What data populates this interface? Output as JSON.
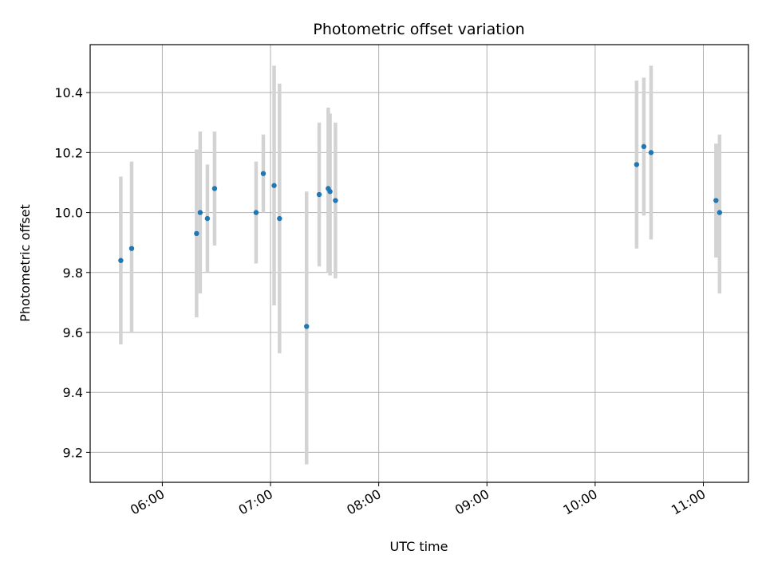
{
  "chart_data": {
    "type": "scatter",
    "title": "Photometric offset variation",
    "xlabel": "UTC time",
    "ylabel": "Photometric offset",
    "x_tick_labels": [
      "06:00",
      "07:00",
      "08:00",
      "09:00",
      "10:00",
      "11:00"
    ],
    "y_tick_labels": [
      "9.2",
      "9.4",
      "9.6",
      "9.8",
      "10.0",
      "10.2",
      "10.4"
    ],
    "xlim": [
      "05:20",
      "11:25"
    ],
    "ylim": [
      9.1,
      10.56
    ],
    "grid": true,
    "colors": {
      "point": "#1f77b4",
      "errorbar": "#d3d3d3"
    },
    "points": [
      {
        "x": "05:37",
        "y": 9.84,
        "y_low": 9.56,
        "y_high": 10.12
      },
      {
        "x": "05:43",
        "y": 9.88,
        "y_low": 9.6,
        "y_high": 10.17
      },
      {
        "x": "06:19",
        "y": 9.93,
        "y_low": 9.65,
        "y_high": 10.21
      },
      {
        "x": "06:21",
        "y": 10.0,
        "y_low": 9.73,
        "y_high": 10.27
      },
      {
        "x": "06:25",
        "y": 9.98,
        "y_low": 9.8,
        "y_high": 10.16
      },
      {
        "x": "06:29",
        "y": 10.08,
        "y_low": 9.89,
        "y_high": 10.27
      },
      {
        "x": "06:52",
        "y": 10.0,
        "y_low": 9.83,
        "y_high": 10.17
      },
      {
        "x": "06:56",
        "y": 10.13,
        "y_low": 10.0,
        "y_high": 10.26
      },
      {
        "x": "07:02",
        "y": 10.09,
        "y_low": 9.69,
        "y_high": 10.49
      },
      {
        "x": "07:05",
        "y": 9.98,
        "y_low": 9.53,
        "y_high": 10.43
      },
      {
        "x": "07:20",
        "y": 9.62,
        "y_low": 9.16,
        "y_high": 10.07
      },
      {
        "x": "07:27",
        "y": 10.06,
        "y_low": 9.82,
        "y_high": 10.3
      },
      {
        "x": "07:32",
        "y": 10.08,
        "y_low": 9.8,
        "y_high": 10.35
      },
      {
        "x": "07:33",
        "y": 10.07,
        "y_low": 9.79,
        "y_high": 10.33
      },
      {
        "x": "07:36",
        "y": 10.04,
        "y_low": 9.78,
        "y_high": 10.3
      },
      {
        "x": "10:23",
        "y": 10.16,
        "y_low": 9.88,
        "y_high": 10.44
      },
      {
        "x": "10:27",
        "y": 10.22,
        "y_low": 9.99,
        "y_high": 10.45
      },
      {
        "x": "10:31",
        "y": 10.2,
        "y_low": 9.91,
        "y_high": 10.49
      },
      {
        "x": "11:07",
        "y": 10.04,
        "y_low": 9.85,
        "y_high": 10.23
      },
      {
        "x": "11:09",
        "y": 10.0,
        "y_low": 9.73,
        "y_high": 10.26
      }
    ]
  }
}
